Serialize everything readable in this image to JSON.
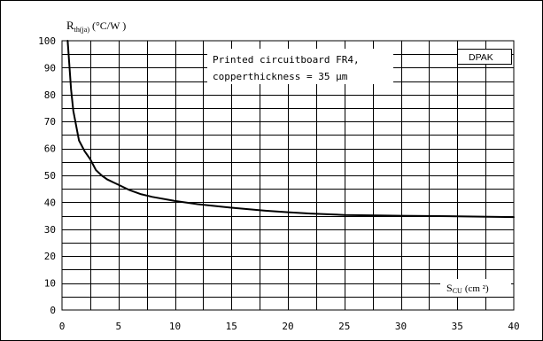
{
  "chart_data": {
    "type": "line",
    "ylabel_main": "R",
    "ylabel_sub": "th(ja)",
    "ylabel_unit": "(°C/W )",
    "xlabel_main": "S",
    "xlabel_sub": "CU",
    "xlabel_unit": "(cm ²)",
    "xlim": [
      0,
      40
    ],
    "ylim": [
      0,
      100
    ],
    "x_ticks": [
      "0",
      "5",
      "10",
      "15",
      "20",
      "25",
      "30",
      "35",
      "40"
    ],
    "y_ticks": [
      "0",
      "10",
      "20",
      "30",
      "40",
      "50",
      "60",
      "70",
      "80",
      "90",
      "100"
    ],
    "grid": true,
    "annotation_lines": [
      "Printed circuitboard FR4,",
      "copperthickness = 35 µm"
    ],
    "package_label": "DPAK",
    "series": [
      {
        "x": [
          0.5,
          0.8,
          1.0,
          1.5,
          2.0,
          2.5,
          3.0,
          3.5,
          4.0,
          5.0,
          6.0,
          7.0,
          8.0,
          10.0,
          12.0,
          15.0,
          18.0,
          20.0,
          22.0,
          25.0,
          28.0,
          30.0,
          35.0,
          40.0
        ],
        "y": [
          100,
          82,
          74,
          63,
          59,
          56,
          52,
          50,
          48.5,
          46.5,
          44.5,
          43,
          42,
          40.5,
          39.3,
          38,
          36.9,
          36.3,
          35.8,
          35.3,
          35.1,
          35,
          34.8,
          34.5
        ]
      }
    ]
  }
}
